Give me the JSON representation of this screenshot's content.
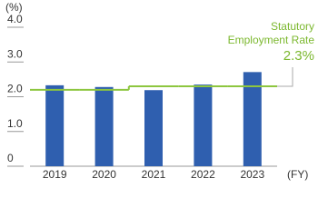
{
  "chart_data": {
    "type": "bar",
    "y_unit": "(%)",
    "x_unit": "(FY)",
    "categories": [
      "2019",
      "2020",
      "2021",
      "2022",
      "2023"
    ],
    "values": [
      2.33,
      2.28,
      2.19,
      2.35,
      2.71
    ],
    "color": "#2f5faf",
    "statutory": {
      "name_lines": [
        "Statutory",
        "Employment Rate"
      ],
      "values": [
        2.2,
        2.2,
        2.3,
        2.3,
        2.3
      ],
      "value_label": "2.3%",
      "color": "#8dc63f"
    },
    "ylim": [
      0,
      4
    ],
    "yticks": [
      0,
      {
        "value": 1,
        "label": "1.0"
      },
      {
        "value": 2,
        "label": "2.0"
      },
      {
        "value": 3,
        "label": "3.0"
      },
      {
        "value": 4,
        "label": "4.0"
      }
    ]
  }
}
